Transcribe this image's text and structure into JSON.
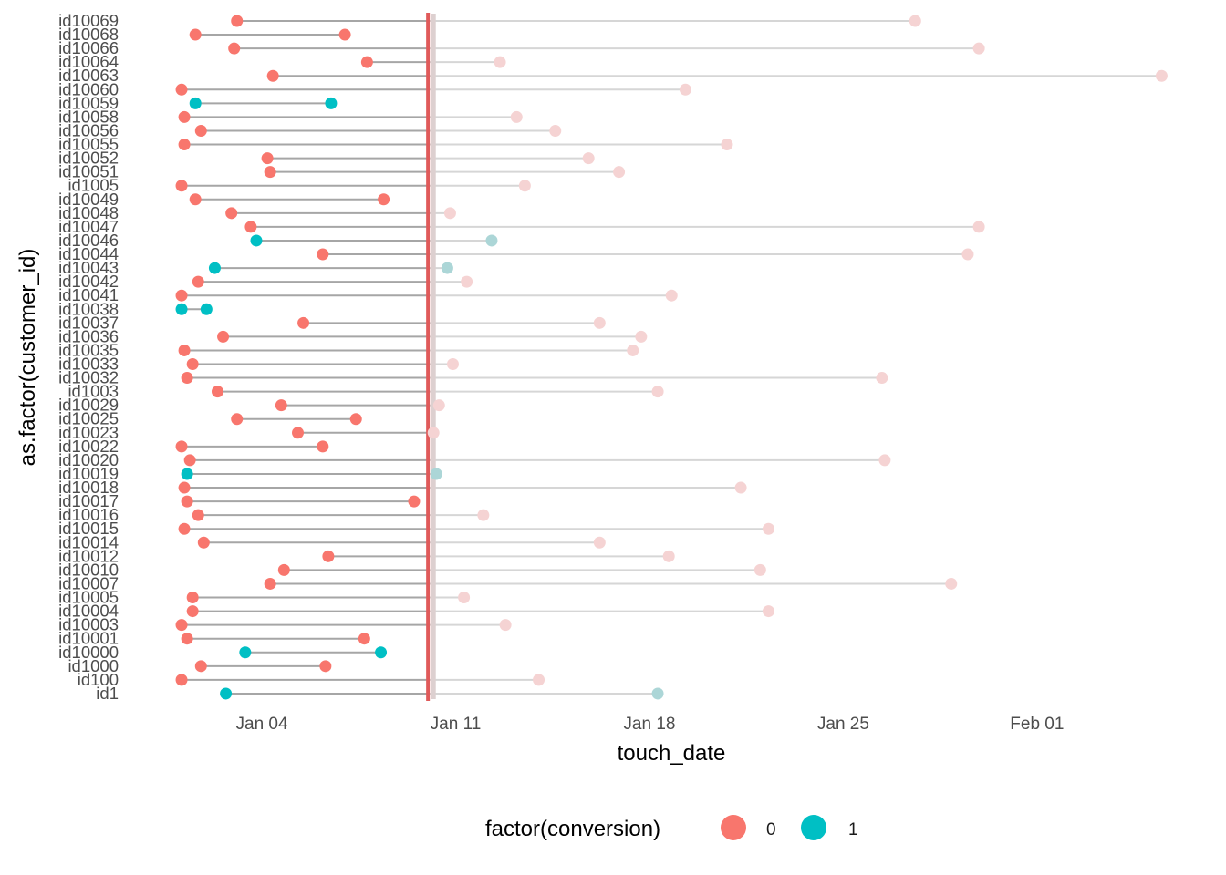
{
  "chart_data": {
    "type": "scatter",
    "subtype": "dumbbell-timeline",
    "title": "",
    "xlabel": "touch_date",
    "ylabel": "as.factor(customer_id)",
    "x_unit": "days since Jan 01",
    "xlim_days": [
      -0.1,
      35.8
    ],
    "x_ticks": [
      {
        "label": "Jan 04",
        "day": 3
      },
      {
        "label": "Jan 11",
        "day": 10
      },
      {
        "label": "Jan 18",
        "day": 17
      },
      {
        "label": "Jan 25",
        "day": 24
      },
      {
        "label": "Feb 01",
        "day": 31
      }
    ],
    "reference_lines": [
      {
        "name": "cutoff",
        "day": 9.0,
        "color": "#e05a5a"
      },
      {
        "name": "cutoff-shadow",
        "day": 9.2,
        "color": "#ddd0d0"
      }
    ],
    "legend": {
      "title": "factor(conversion)",
      "position": "bottom",
      "entries": [
        {
          "label": "0",
          "color": "#F8766D"
        },
        {
          "label": "1",
          "color": "#00BFC4"
        }
      ]
    },
    "colors": {
      "conv0": "#F8766D",
      "conv1": "#00BFC4",
      "conv0_faded": "#f5d3d3",
      "conv1_faded": "#acd6d7",
      "segment_before": "#a6a6a6",
      "segment_after": "#d6d6d6"
    },
    "rows": [
      {
        "id": "id10069",
        "first": 2.1,
        "first_conv": 0,
        "last": 26.6,
        "last_conv": 0,
        "last_faded": true
      },
      {
        "id": "id10068",
        "first": 0.6,
        "first_conv": 0,
        "last": 6.0,
        "last_conv": 0,
        "last_faded": false
      },
      {
        "id": "id10066",
        "first": 2.0,
        "first_conv": 0,
        "last": 28.9,
        "last_conv": 0,
        "last_faded": true
      },
      {
        "id": "id10064",
        "first": 6.8,
        "first_conv": 0,
        "last": 11.6,
        "last_conv": 0,
        "last_faded": true
      },
      {
        "id": "id10063",
        "first": 3.4,
        "first_conv": 0,
        "last": 35.5,
        "last_conv": 0,
        "last_faded": true
      },
      {
        "id": "id10060",
        "first": 0.1,
        "first_conv": 0,
        "last": 18.3,
        "last_conv": 0,
        "last_faded": true
      },
      {
        "id": "id10059",
        "first": 0.6,
        "first_conv": 1,
        "last": 5.5,
        "last_conv": 1,
        "last_faded": false
      },
      {
        "id": "id10058",
        "first": 0.2,
        "first_conv": 0,
        "last": 12.2,
        "last_conv": 0,
        "last_faded": true
      },
      {
        "id": "id10056",
        "first": 0.8,
        "first_conv": 0,
        "last": 13.6,
        "last_conv": 0,
        "last_faded": true
      },
      {
        "id": "id10055",
        "first": 0.2,
        "first_conv": 0,
        "last": 19.8,
        "last_conv": 0,
        "last_faded": true
      },
      {
        "id": "id10052",
        "first": 3.2,
        "first_conv": 0,
        "last": 14.8,
        "last_conv": 0,
        "last_faded": true
      },
      {
        "id": "id10051",
        "first": 3.3,
        "first_conv": 0,
        "last": 15.9,
        "last_conv": 0,
        "last_faded": true
      },
      {
        "id": "id1005",
        "first": 0.1,
        "first_conv": 0,
        "last": 12.5,
        "last_conv": 0,
        "last_faded": true
      },
      {
        "id": "id10049",
        "first": 0.6,
        "first_conv": 0,
        "last": 7.4,
        "last_conv": 0,
        "last_faded": false
      },
      {
        "id": "id10048",
        "first": 1.9,
        "first_conv": 0,
        "last": 9.8,
        "last_conv": 0,
        "last_faded": true
      },
      {
        "id": "id10047",
        "first": 2.6,
        "first_conv": 0,
        "last": 28.9,
        "last_conv": 0,
        "last_faded": true
      },
      {
        "id": "id10046",
        "first": 2.8,
        "first_conv": 1,
        "last": 11.3,
        "last_conv": 1,
        "last_faded": true
      },
      {
        "id": "id10044",
        "first": 5.2,
        "first_conv": 0,
        "last": 28.5,
        "last_conv": 0,
        "last_faded": true
      },
      {
        "id": "id10043",
        "first": 1.3,
        "first_conv": 1,
        "last": 9.7,
        "last_conv": 1,
        "last_faded": true
      },
      {
        "id": "id10042",
        "first": 0.7,
        "first_conv": 0,
        "last": 10.4,
        "last_conv": 0,
        "last_faded": true
      },
      {
        "id": "id10041",
        "first": 0.1,
        "first_conv": 0,
        "last": 17.8,
        "last_conv": 0,
        "last_faded": true
      },
      {
        "id": "id10038",
        "first": 0.1,
        "first_conv": 1,
        "last": 1.0,
        "last_conv": 1,
        "last_faded": false
      },
      {
        "id": "id10037",
        "first": 4.5,
        "first_conv": 0,
        "last": 15.2,
        "last_conv": 0,
        "last_faded": true
      },
      {
        "id": "id10036",
        "first": 1.6,
        "first_conv": 0,
        "last": 16.7,
        "last_conv": 0,
        "last_faded": true
      },
      {
        "id": "id10035",
        "first": 0.2,
        "first_conv": 0,
        "last": 16.4,
        "last_conv": 0,
        "last_faded": true
      },
      {
        "id": "id10033",
        "first": 0.5,
        "first_conv": 0,
        "last": 9.9,
        "last_conv": 0,
        "last_faded": true
      },
      {
        "id": "id10032",
        "first": 0.3,
        "first_conv": 0,
        "last": 25.4,
        "last_conv": 0,
        "last_faded": true
      },
      {
        "id": "id1003",
        "first": 1.4,
        "first_conv": 0,
        "last": 17.3,
        "last_conv": 0,
        "last_faded": true
      },
      {
        "id": "id10029",
        "first": 3.7,
        "first_conv": 0,
        "last": 9.4,
        "last_conv": 0,
        "last_faded": true
      },
      {
        "id": "id10025",
        "first": 2.1,
        "first_conv": 0,
        "last": 6.4,
        "last_conv": 0,
        "last_faded": false
      },
      {
        "id": "id10023",
        "first": 4.3,
        "first_conv": 0,
        "last": 9.2,
        "last_conv": 0,
        "last_faded": true
      },
      {
        "id": "id10022",
        "first": 0.1,
        "first_conv": 0,
        "last": 5.2,
        "last_conv": 0,
        "last_faded": false
      },
      {
        "id": "id10020",
        "first": 0.4,
        "first_conv": 0,
        "last": 25.5,
        "last_conv": 0,
        "last_faded": true
      },
      {
        "id": "id10019",
        "first": 0.3,
        "first_conv": 1,
        "last": 9.3,
        "last_conv": 1,
        "last_faded": true
      },
      {
        "id": "id10018",
        "first": 0.2,
        "first_conv": 0,
        "last": 20.3,
        "last_conv": 0,
        "last_faded": true
      },
      {
        "id": "id10017",
        "first": 0.3,
        "first_conv": 0,
        "last": 8.5,
        "last_conv": 0,
        "last_faded": false
      },
      {
        "id": "id10016",
        "first": 0.7,
        "first_conv": 0,
        "last": 11.0,
        "last_conv": 0,
        "last_faded": true
      },
      {
        "id": "id10015",
        "first": 0.2,
        "first_conv": 0,
        "last": 21.3,
        "last_conv": 0,
        "last_faded": true
      },
      {
        "id": "id10014",
        "first": 0.9,
        "first_conv": 0,
        "last": 15.2,
        "last_conv": 0,
        "last_faded": true
      },
      {
        "id": "id10012",
        "first": 5.4,
        "first_conv": 0,
        "last": 17.7,
        "last_conv": 0,
        "last_faded": true
      },
      {
        "id": "id10010",
        "first": 3.8,
        "first_conv": 0,
        "last": 21.0,
        "last_conv": 0,
        "last_faded": true
      },
      {
        "id": "id10007",
        "first": 3.3,
        "first_conv": 0,
        "last": 27.9,
        "last_conv": 0,
        "last_faded": true
      },
      {
        "id": "id10005",
        "first": 0.5,
        "first_conv": 0,
        "last": 10.3,
        "last_conv": 0,
        "last_faded": true
      },
      {
        "id": "id10004",
        "first": 0.5,
        "first_conv": 0,
        "last": 21.3,
        "last_conv": 0,
        "last_faded": true
      },
      {
        "id": "id10003",
        "first": 0.1,
        "first_conv": 0,
        "last": 11.8,
        "last_conv": 0,
        "last_faded": true
      },
      {
        "id": "id10001",
        "first": 0.3,
        "first_conv": 0,
        "last": 6.7,
        "last_conv": 0,
        "last_faded": false
      },
      {
        "id": "id10000",
        "first": 2.4,
        "first_conv": 1,
        "last": 7.3,
        "last_conv": 1,
        "last_faded": false
      },
      {
        "id": "id1000",
        "first": 0.8,
        "first_conv": 0,
        "last": 5.3,
        "last_conv": 0,
        "last_faded": false
      },
      {
        "id": "id100",
        "first": 0.1,
        "first_conv": 0,
        "last": 13.0,
        "last_conv": 0,
        "last_faded": true
      },
      {
        "id": "id1",
        "first": 1.7,
        "first_conv": 1,
        "last": 17.3,
        "last_conv": 1,
        "last_faded": true
      }
    ]
  }
}
